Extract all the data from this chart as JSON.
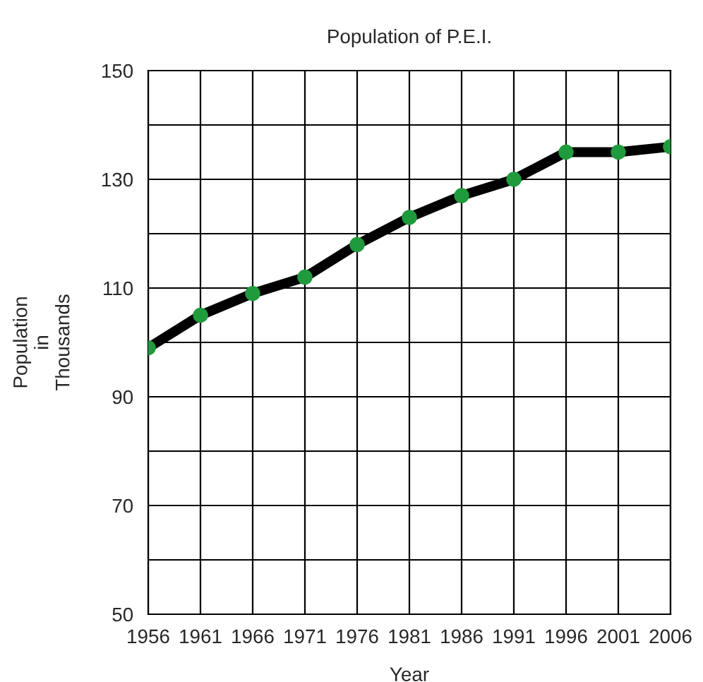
{
  "chart_data": {
    "type": "line",
    "title": "Population of P.E.I.",
    "xlabel": "Year",
    "ylabel": "Population\nin\nThousands",
    "x": [
      1956,
      1961,
      1966,
      1971,
      1976,
      1981,
      1986,
      1991,
      1996,
      2001,
      2006
    ],
    "series": [
      {
        "color": "#000000",
        "colors": [
          "#1f9a3c",
          "#1f9a3c",
          "#1f9a3c",
          "#1f9a3c",
          "#1f9a3c",
          "#1f9a3c",
          "#1f9a3c",
          "#1f9a3c",
          "#1f9a3c",
          "#1f9a3c",
          "#1f9a3c"
        ],
        "values": [
          99,
          105,
          109,
          112,
          118,
          123,
          127,
          130,
          135,
          135,
          136
        ]
      }
    ],
    "xlim": [
      1956,
      2006
    ],
    "xticks": [
      1956,
      1961,
      1966,
      1971,
      1976,
      1981,
      1986,
      1991,
      1996,
      2001,
      2006
    ],
    "ylim": [
      50,
      150
    ],
    "yticks": [
      50,
      {
        "value": 60,
        "label": null
      },
      70,
      {
        "value": 80,
        "label": null
      },
      90,
      {
        "value": 100,
        "label": null
      },
      110,
      {
        "value": 120,
        "label": null
      },
      130,
      {
        "value": 140,
        "label": null
      },
      150
    ],
    "grid": true,
    "marker": "circle",
    "line_style": "solid",
    "legend": false
  }
}
